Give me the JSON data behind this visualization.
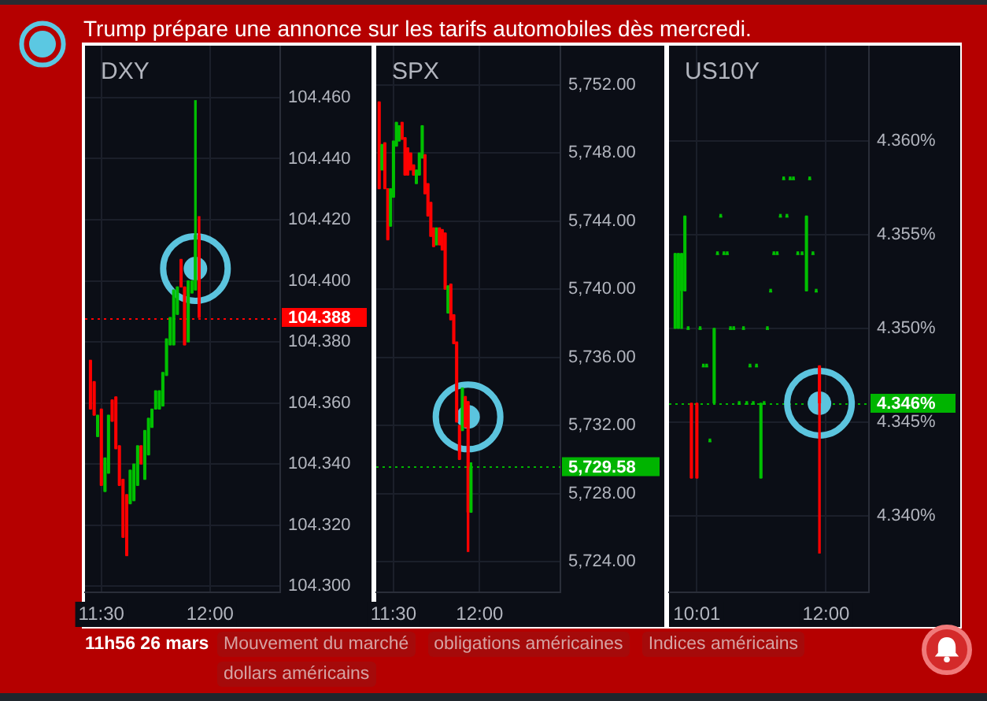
{
  "chart_data": [
    {
      "type": "candlestick",
      "title": "DXY",
      "annotations": [
        "Trump prépare une annonce sur les tarifs automobiles dès mercredi.",
        "11h56 26 mars",
        "Mouvement du marché",
        "obligations américaines",
        "Indices américains",
        "dollars américains"
      ],
      "x": [
        11.45,
        11.467,
        11.483,
        11.5,
        11.517,
        11.533,
        11.55,
        11.567,
        11.583,
        11.6,
        11.617,
        11.633,
        11.65,
        11.667,
        11.683,
        11.7,
        11.717,
        11.733,
        11.75,
        11.767,
        11.783,
        11.8,
        11.817,
        11.833,
        11.85,
        11.867,
        11.883,
        11.9,
        11.917,
        11.933,
        11.95
      ],
      "ohlc": [
        [
          104.374,
          104.374,
          104.358,
          104.358
        ],
        [
          104.367,
          104.367,
          104.356,
          104.356
        ],
        [
          104.349,
          104.356,
          104.349,
          104.356
        ],
        [
          104.358,
          104.358,
          104.333,
          104.333
        ],
        [
          104.331,
          104.342,
          104.331,
          104.342
        ],
        [
          104.337,
          104.356,
          104.337,
          104.356
        ],
        [
          104.361,
          104.361,
          104.354,
          104.354
        ],
        [
          104.362,
          104.362,
          104.345,
          104.345
        ],
        [
          104.346,
          104.346,
          104.333,
          104.333
        ],
        [
          104.335,
          104.335,
          104.316,
          104.316
        ],
        [
          104.33,
          104.33,
          104.31,
          104.31
        ],
        [
          104.327,
          104.338,
          104.327,
          104.338
        ],
        [
          104.328,
          104.34,
          104.328,
          104.34
        ],
        [
          104.333,
          104.346,
          104.333,
          104.346
        ],
        [
          104.346,
          104.346,
          104.34,
          104.34
        ],
        [
          104.335,
          104.351,
          104.335,
          104.351
        ],
        [
          104.343,
          104.355,
          104.343,
          104.355
        ],
        [
          104.352,
          104.358,
          104.352,
          104.358
        ],
        [
          104.358,
          104.364,
          104.358,
          104.364
        ],
        [
          104.358,
          104.364,
          104.358,
          104.364
        ],
        [
          104.359,
          104.37,
          104.359,
          104.37
        ],
        [
          104.369,
          104.381,
          104.369,
          104.381
        ],
        [
          104.379,
          104.388,
          104.379,
          104.388
        ],
        [
          104.379,
          104.397,
          104.379,
          104.397
        ],
        [
          104.389,
          104.398,
          104.389,
          104.398
        ],
        [
          104.407,
          104.407,
          104.398,
          104.398
        ],
        [
          104.398,
          104.398,
          104.379,
          104.379
        ],
        [
          104.38,
          104.4,
          104.38,
          104.4
        ],
        [
          104.396,
          104.4,
          104.396,
          104.4
        ],
        [
          104.397,
          104.459,
          104.397,
          104.415
        ],
        [
          104.415,
          104.421,
          104.388,
          104.388
        ]
      ],
      "colors": [
        "#ff0000",
        "#ff0000",
        "#00c000",
        "#ff0000",
        "#00c000",
        "#00c000",
        "#ff0000",
        "#ff0000",
        "#ff0000",
        "#ff0000",
        "#ff0000",
        "#00c000",
        "#00c000",
        "#00c000",
        "#ff0000",
        "#00c000",
        "#00c000",
        "#00c000",
        "#00c000",
        "#00c000",
        "#00c000",
        "#00c000",
        "#00c000",
        "#00c000",
        "#00c000",
        "#ff0000",
        "#ff0000",
        "#00c000",
        "#00c000",
        "#00c000",
        "#ff0000"
      ],
      "series": [
        {
          "type": "scatter",
          "color": "#5bc4de",
          "values": [
            null,
            null,
            null,
            null,
            null,
            null,
            null,
            null,
            null,
            null,
            null,
            null,
            null,
            null,
            null,
            null,
            null,
            null,
            null,
            null,
            null,
            null,
            null,
            null,
            null,
            null,
            null,
            null,
            null,
            104.404,
            null
          ]
        }
      ],
      "xlim": [
        11.425,
        12.323
      ],
      "xticks": [
        {
          "value": 11.5,
          "label": "11:30"
        },
        {
          "value": 12,
          "label": "12:00"
        }
      ],
      "ylim": [
        104.298,
        104.477
      ],
      "yticks": [
        {
          "value": 104.3,
          "label": "104.300"
        },
        {
          "value": 104.32,
          "label": "104.320"
        },
        {
          "value": 104.34,
          "label": "104.340"
        },
        {
          "value": 104.36,
          "label": "104.360"
        },
        {
          "value": 104.38,
          "label": "104.380"
        },
        {
          "value": 104.4,
          "label": "104.400"
        },
        {
          "value": 104.42,
          "label": "104.420"
        },
        {
          "value": 104.44,
          "label": "104.440"
        },
        {
          "value": 104.46,
          "label": "104.460"
        }
      ],
      "ref_lines": [
        {
          "axis": "y",
          "value": 104.388,
          "label": "104.388",
          "color": "#ff0000",
          "line_style": "dotted"
        }
      ],
      "grid": true,
      "marker": "circle"
    },
    {
      "type": "candlestick",
      "title": "SPX",
      "x": [
        11.417,
        11.433,
        11.45,
        11.467,
        11.483,
        11.5,
        11.517,
        11.533,
        11.55,
        11.567,
        11.583,
        11.6,
        11.617,
        11.633,
        11.65,
        11.667,
        11.683,
        11.7,
        11.717,
        11.733,
        11.75,
        11.767,
        11.783,
        11.8,
        11.817,
        11.833,
        11.85,
        11.867,
        11.883,
        11.9,
        11.917,
        11.933,
        11.95
      ],
      "ohlc": [
        [
          5751.0,
          5751.0,
          5745.9,
          5745.9
        ],
        [
          5747.0,
          5748.5,
          5747.0,
          5748.5
        ],
        [
          5748.6,
          5748.6,
          5745.9,
          5745.9
        ],
        [
          5745.9,
          5745.9,
          5742.9,
          5742.9
        ],
        [
          5743.7,
          5745.9,
          5743.7,
          5745.9
        ],
        [
          5745.4,
          5748.7,
          5745.4,
          5748.7
        ],
        [
          5748.4,
          5749.8,
          5748.4,
          5749.8
        ],
        [
          5748.7,
          5749.6,
          5748.7,
          5749.6
        ],
        [
          5749.8,
          5749.8,
          5748.8,
          5748.8
        ],
        [
          5748.9,
          5748.9,
          5746.7,
          5746.7
        ],
        [
          5748.3,
          5748.3,
          5746.7,
          5746.7
        ],
        [
          5748.0,
          5748.0,
          5747.0,
          5747.0
        ],
        [
          5747.3,
          5747.3,
          5746.7,
          5746.7
        ],
        [
          5746.2,
          5747.0,
          5746.2,
          5747.0
        ],
        [
          5746.7,
          5748.0,
          5746.7,
          5748.0
        ],
        [
          5747.7,
          5749.6,
          5747.7,
          5749.6
        ],
        [
          5747.9,
          5747.9,
          5745.6,
          5745.6
        ],
        [
          5746.2,
          5746.2,
          5744.3,
          5744.3
        ],
        [
          5745.1,
          5745.1,
          5743.1,
          5743.1
        ],
        [
          5743.6,
          5743.6,
          5742.5,
          5742.5
        ],
        [
          5742.6,
          5743.6,
          5742.6,
          5743.6
        ],
        [
          5743.6,
          5743.6,
          5742.6,
          5742.6
        ],
        [
          5743.5,
          5743.5,
          5742.3,
          5742.3
        ],
        [
          5743.3,
          5743.3,
          5740.0,
          5740.0
        ],
        [
          5738.6,
          5740.2,
          5738.6,
          5740.2
        ],
        [
          5740.3,
          5740.3,
          5738.2,
          5738.2
        ],
        [
          5738.5,
          5738.5,
          5736.8,
          5736.8
        ],
        [
          5736.9,
          5736.9,
          5732.2,
          5732.2
        ],
        [
          5732.0,
          5732.0,
          5730.0,
          5730.0
        ],
        [
          5731.7,
          5734.2,
          5731.7,
          5734.2
        ],
        [
          5733.7,
          5733.7,
          5731.9,
          5731.9
        ],
        [
          5733.4,
          5733.4,
          5724.6,
          5726.9
        ],
        [
          5726.9,
          5729.8,
          5726.9,
          5729.58
        ]
      ],
      "colors": [
        "#ff0000",
        "#00c000",
        "#ff0000",
        "#ff0000",
        "#00c000",
        "#00c000",
        "#00c000",
        "#00c000",
        "#ff0000",
        "#ff0000",
        "#ff0000",
        "#ff0000",
        "#ff0000",
        "#00c000",
        "#00c000",
        "#00c000",
        "#ff0000",
        "#ff0000",
        "#ff0000",
        "#ff0000",
        "#00c000",
        "#ff0000",
        "#ff0000",
        "#ff0000",
        "#00c000",
        "#ff0000",
        "#ff0000",
        "#ff0000",
        "#ff0000",
        "#00c000",
        "#ff0000",
        "#ff0000",
        "#00c000"
      ],
      "series": [
        {
          "type": "scatter",
          "color": "#5bc4de",
          "values": [
            null,
            null,
            null,
            null,
            null,
            null,
            null,
            null,
            null,
            null,
            null,
            null,
            null,
            null,
            null,
            null,
            null,
            null,
            null,
            null,
            null,
            null,
            null,
            null,
            null,
            null,
            null,
            null,
            null,
            null,
            null,
            5732.5,
            null
          ]
        }
      ],
      "xlim": [
        11.4,
        12.469
      ],
      "xticks": [
        {
          "value": 11.5,
          "label": "11:30"
        },
        {
          "value": 12,
          "label": "12:00"
        }
      ],
      "ylim": [
        5722.2,
        5754.3
      ],
      "yticks": [
        {
          "value": 5724,
          "label": "5,724.00"
        },
        {
          "value": 5728,
          "label": "5,728.00"
        },
        {
          "value": 5732,
          "label": "5,732.00"
        },
        {
          "value": 5736,
          "label": "5,736.00"
        },
        {
          "value": 5740,
          "label": "5,740.00"
        },
        {
          "value": 5744,
          "label": "5,744.00"
        },
        {
          "value": 5748,
          "label": "5,748.00"
        },
        {
          "value": 5752,
          "label": "5,752.00"
        }
      ],
      "ref_lines": [
        {
          "axis": "y",
          "value": 5729.58,
          "label": "5,729.58",
          "color": "#00b400",
          "line_style": "dotted"
        }
      ],
      "grid": true,
      "marker": "circle"
    },
    {
      "type": "candlestick",
      "title": "US10Y",
      "x": [
        9.683,
        9.733,
        9.783,
        9.833,
        9.883,
        9.933,
        10.017,
        10.067,
        10.117,
        10.167,
        10.217,
        10.283,
        10.333,
        10.383,
        10.433,
        10.483,
        10.533,
        10.583,
        10.667,
        10.733,
        10.783,
        10.833,
        10.883,
        10.933,
        11,
        11.05,
        11.1,
        11.15,
        11.2,
        11.25,
        11.3,
        11.35,
        11.4,
        11.45,
        11.5,
        11.567,
        11.633,
        11.7,
        11.75,
        11.8,
        11.85,
        11.9
      ],
      "ohlc": [
        [
          4.35,
          4.354,
          4.35,
          4.354
        ],
        [
          4.35,
          4.354,
          4.35,
          4.354
        ],
        [
          4.352,
          4.354,
          4.35,
          4.354
        ],
        [
          4.352,
          4.356,
          4.352,
          4.356
        ],
        [
          4.35,
          4.35,
          4.35,
          4.35
        ],
        [
          4.346,
          4.346,
          4.342,
          4.342
        ],
        [
          4.346,
          4.346,
          4.342,
          4.342
        ],
        [
          4.35,
          4.35,
          4.35,
          4.35
        ],
        [
          4.348,
          4.348,
          4.348,
          4.348
        ],
        [
          4.348,
          4.348,
          4.348,
          4.348
        ],
        [
          4.344,
          4.344,
          4.344,
          4.344
        ],
        [
          4.346,
          4.35,
          4.346,
          4.35
        ],
        [
          4.354,
          4.354,
          4.354,
          4.354
        ],
        [
          4.356,
          4.356,
          4.356,
          4.356
        ],
        [
          4.354,
          4.354,
          4.354,
          4.354
        ],
        [
          4.354,
          4.354,
          4.354,
          4.354
        ],
        [
          4.35,
          4.35,
          4.35,
          4.35
        ],
        [
          4.35,
          4.35,
          4.35,
          4.35
        ],
        [
          4.346,
          4.346,
          4.346,
          4.346
        ],
        [
          4.35,
          4.35,
          4.35,
          4.35
        ],
        [
          4.346,
          4.346,
          4.346,
          4.346
        ],
        [
          4.348,
          4.348,
          4.348,
          4.348
        ],
        [
          4.346,
          4.346,
          4.346,
          4.346
        ],
        [
          4.348,
          4.348,
          4.348,
          4.348
        ],
        [
          4.342,
          4.346,
          4.342,
          4.346
        ],
        [
          4.346,
          4.346,
          4.346,
          4.346
        ],
        [
          4.35,
          4.35,
          4.35,
          4.35
        ],
        [
          4.352,
          4.352,
          4.352,
          4.352
        ],
        [
          4.354,
          4.354,
          4.354,
          4.354
        ],
        [
          4.354,
          4.354,
          4.354,
          4.354
        ],
        [
          4.356,
          4.356,
          4.356,
          4.356
        ],
        [
          4.358,
          4.358,
          4.358,
          4.358
        ],
        [
          4.356,
          4.356,
          4.356,
          4.356
        ],
        [
          4.358,
          4.358,
          4.358,
          4.358
        ],
        [
          4.358,
          4.358,
          4.358,
          4.358
        ],
        [
          4.354,
          4.354,
          4.354,
          4.354
        ],
        [
          4.354,
          4.354,
          4.354,
          4.354
        ],
        [
          4.352,
          4.356,
          4.352,
          4.356
        ],
        [
          4.358,
          4.358,
          4.358,
          4.358
        ],
        [
          4.354,
          4.354,
          4.354,
          4.354
        ],
        [
          4.352,
          4.352,
          4.352,
          4.352
        ],
        [
          4.348,
          4.348,
          4.338,
          4.346
        ]
      ],
      "colors": [
        "#00c000",
        "#00c000",
        "#00c000",
        "#00c000",
        "#00c000",
        "#ff0000",
        "#ff0000",
        "#00c000",
        "#00c000",
        "#00c000",
        "#00c000",
        "#00c000",
        "#00c000",
        "#00c000",
        "#00c000",
        "#00c000",
        "#00c000",
        "#00c000",
        "#00c000",
        "#00c000",
        "#00c000",
        "#00c000",
        "#00c000",
        "#00c000",
        "#00c000",
        "#00c000",
        "#00c000",
        "#00c000",
        "#00c000",
        "#00c000",
        "#00c000",
        "#00c000",
        "#00c000",
        "#00c000",
        "#00c000",
        "#00c000",
        "#00c000",
        "#00c000",
        "#00c000",
        "#00c000",
        "#00c000",
        "#ff0000"
      ],
      "series": [
        {
          "type": "scatter",
          "color": "#5bc4de",
          "values": [
            null,
            null,
            null,
            null,
            null,
            null,
            null,
            null,
            null,
            null,
            null,
            null,
            null,
            null,
            null,
            null,
            null,
            null,
            null,
            null,
            null,
            null,
            null,
            null,
            null,
            null,
            null,
            null,
            null,
            null,
            null,
            null,
            null,
            null,
            null,
            null,
            null,
            null,
            null,
            null,
            null,
            4.346
          ]
        }
      ],
      "xlim": [
        9.589,
        12.66
      ],
      "xticks": [
        {
          "value": 10.017,
          "label": "10:01"
        },
        {
          "value": 12,
          "label": "12:00"
        }
      ],
      "ylim": [
        4.3359,
        4.3651
      ],
      "yticks": [
        {
          "value": 4.34,
          "label": "4.340%"
        },
        {
          "value": 4.345,
          "label": "4.345%"
        },
        {
          "value": 4.35,
          "label": "4.350%"
        },
        {
          "value": 4.355,
          "label": "4.355%"
        },
        {
          "value": 4.36,
          "label": "4.360%"
        }
      ],
      "ref_lines": [
        {
          "axis": "y",
          "value": 4.346,
          "label": "4.346%",
          "color": "#00b400",
          "line_style": "dotted"
        }
      ],
      "grid": true,
      "marker": "circle"
    }
  ]
}
